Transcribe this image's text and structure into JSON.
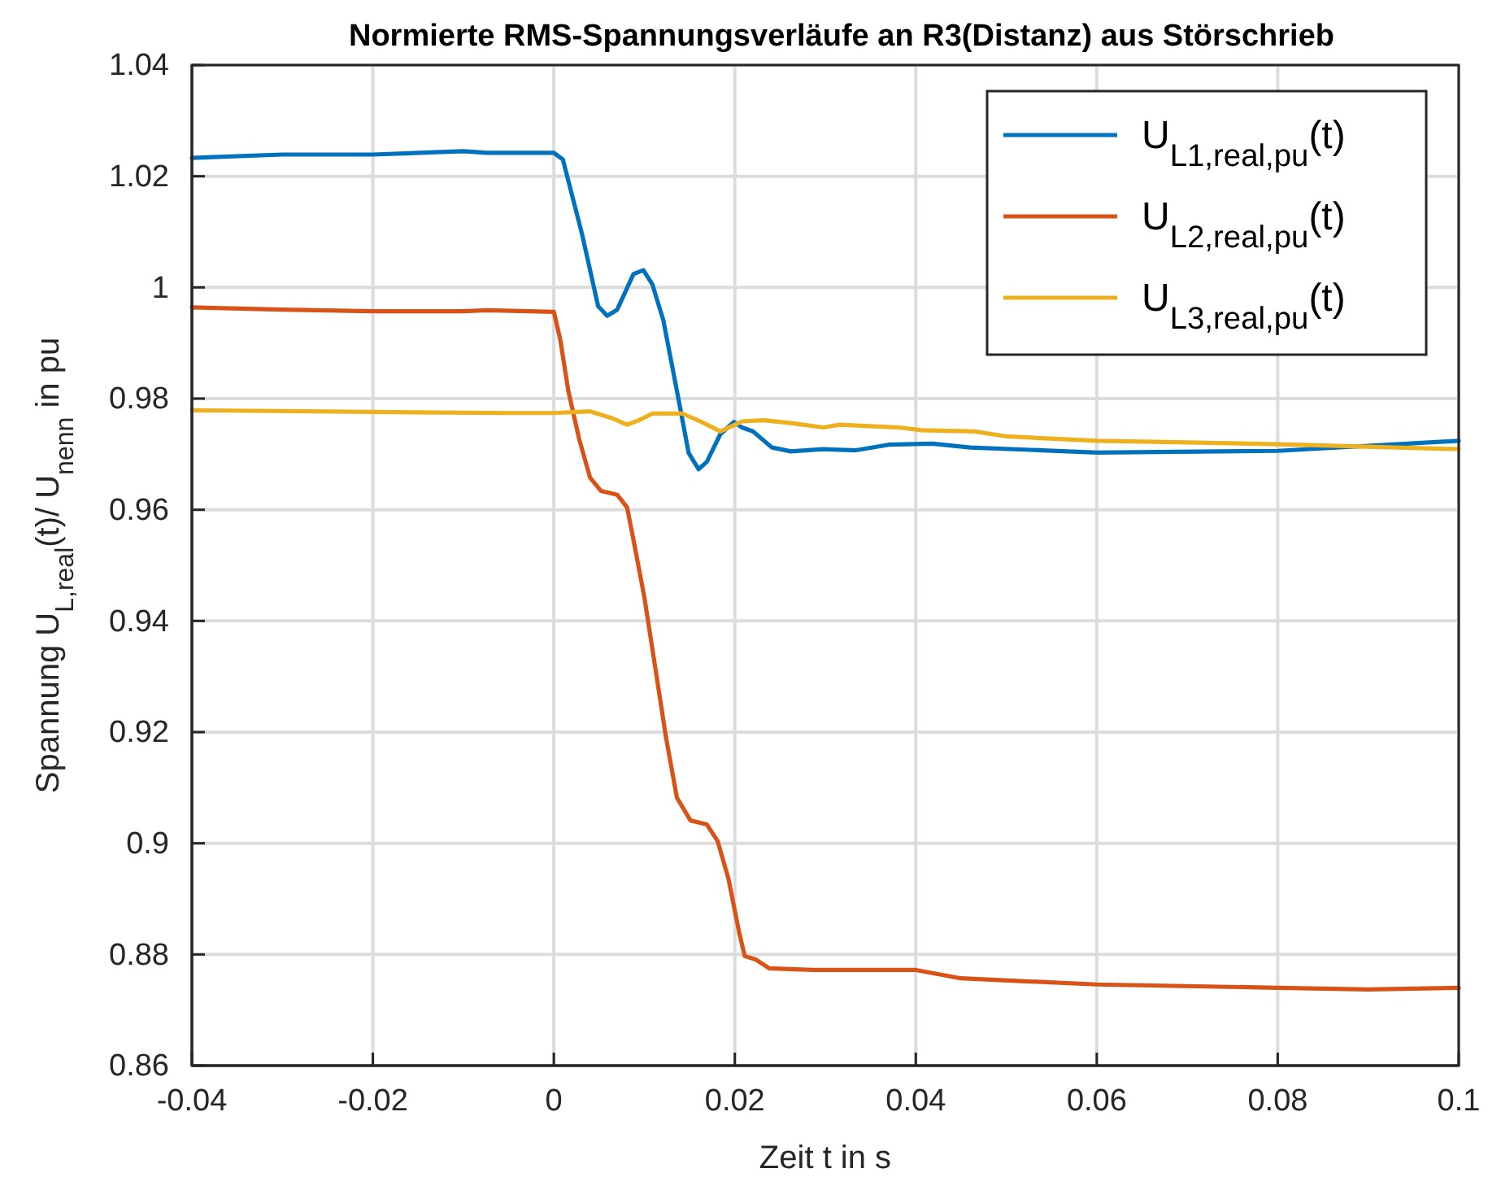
{
  "chart_data": {
    "type": "line",
    "title": "Normierte RMS-Spannungsverläufe an R3(Distanz) aus Störschrieb",
    "xlabel": "Zeit t in s",
    "ylabel": "Spannung  U$_{L,real}$(t)/ U$_{nenn}$ in pu",
    "xlim": [
      -0.04,
      0.1
    ],
    "xticks": [
      -0.04,
      -0.02,
      0,
      0.02,
      0.04,
      0.06,
      0.08,
      0.1
    ],
    "ylim": [
      0.86,
      1.04
    ],
    "yticks": [
      0.86,
      0.88,
      0.9,
      0.92,
      0.94,
      0.96,
      0.98,
      {
        "value": 1,
        "label": "1"
      },
      1.02,
      1.04
    ],
    "grid": true,
    "legend": "top right",
    "line_style": "solid",
    "marker": "none",
    "series": [
      {
        "name": "U$_{L1,real,pu}$(t)",
        "color": "#0072bd",
        "x": [
          -0.04,
          -0.03,
          -0.02,
          -0.01,
          -0.0074,
          0,
          0.001,
          0.0031,
          0.0049,
          0.0059,
          0.007,
          0.0088,
          0.0099,
          0.0109,
          0.0121,
          0.0136,
          0.0149,
          0.016,
          0.0169,
          0.0184,
          0.0199,
          0.0208,
          0.022,
          0.0241,
          0.0262,
          0.0298,
          0.0334,
          0.037,
          0.0418,
          0.046,
          0.06,
          0.08,
          0.1
        ],
        "values": [
          1.0233,
          1.0239,
          1.0239,
          1.0245,
          1.0242,
          1.0242,
          1.023,
          1.0097,
          0.9966,
          0.9949,
          0.996,
          1.0024,
          1.0031,
          1.0005,
          0.9941,
          0.9814,
          0.9702,
          0.9673,
          0.9686,
          0.9736,
          0.9758,
          0.9748,
          0.9741,
          0.9712,
          0.9705,
          0.9709,
          0.9707,
          0.9717,
          0.9719,
          0.9712,
          0.9703,
          0.9706,
          0.9724
        ]
      },
      {
        "name": "U$_{L2,real,pu}$(t)",
        "color": "#d95319",
        "x": [
          -0.04,
          -0.03,
          -0.02,
          -0.01,
          -0.0074,
          0,
          0.0007,
          0.0016,
          0.0028,
          0.004,
          0.0052,
          0.007,
          0.0081,
          0.0088,
          0.01,
          0.0112,
          0.0124,
          0.0136,
          0.0151,
          0.0169,
          0.0181,
          0.0193,
          0.0205,
          0.0211,
          0.0223,
          0.0238,
          0.0286,
          0.04,
          0.045,
          0.06,
          0.08,
          0.09,
          0.1
        ],
        "values": [
          0.9964,
          0.996,
          0.9957,
          0.9957,
          0.9959,
          0.9956,
          0.9907,
          0.9814,
          0.9727,
          0.9658,
          0.9634,
          0.9627,
          0.9604,
          0.9546,
          0.9443,
          0.9317,
          0.919,
          0.9082,
          0.9041,
          0.9034,
          0.9004,
          0.8936,
          0.8838,
          0.8797,
          0.8791,
          0.8775,
          0.8772,
          0.8772,
          0.8757,
          0.8746,
          0.874,
          0.8737,
          0.874
        ]
      },
      {
        "name": "U$_{L3,real,pu}$(t)",
        "color": "#edb120",
        "x": [
          -0.04,
          -0.02,
          -0.005,
          0,
          0.004,
          0.0064,
          0.0081,
          0.0094,
          0.0109,
          0.0142,
          0.0166,
          0.0184,
          0.0208,
          0.0232,
          0.0262,
          0.0298,
          0.0316,
          0.0382,
          0.0406,
          0.0465,
          0.05,
          0.06,
          0.08,
          0.1
        ],
        "values": [
          0.9779,
          0.9776,
          0.9774,
          0.9774,
          0.9777,
          0.9765,
          0.9753,
          0.9761,
          0.9773,
          0.9773,
          0.9756,
          0.9741,
          0.9759,
          0.9761,
          0.9756,
          0.9748,
          0.9753,
          0.9748,
          0.9743,
          0.9741,
          0.9732,
          0.9724,
          0.9718,
          0.9709
        ]
      }
    ]
  }
}
